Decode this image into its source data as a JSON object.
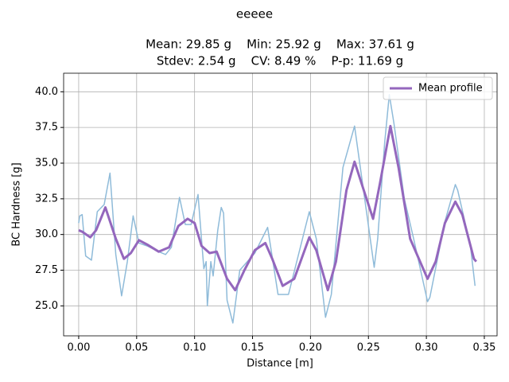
{
  "chart_data": {
    "type": "line",
    "title": "eeeee",
    "subtitle": [
      "Mean: 29.85 g    Min: 25.92 g    Max: 37.61 g",
      "Stdev: 2.54 g    CV: 8.49 %    P-p: 11.69 g"
    ],
    "x_label": "Distance [m]",
    "y_label": "BC Hardness [g]",
    "xlim": [
      -0.013,
      0.361
    ],
    "ylim": [
      22.9,
      41.3
    ],
    "xticks": [
      {
        "value": 0,
        "label": "0.00"
      },
      {
        "value": 0.05,
        "label": "0.05"
      },
      {
        "value": 0.1,
        "label": "0.10"
      },
      {
        "value": 0.15,
        "label": "0.15"
      },
      {
        "value": 0.2,
        "label": "0.20"
      },
      {
        "value": 0.25,
        "label": "0.25"
      },
      {
        "value": 0.3,
        "label": "0.30"
      },
      {
        "value": 0.35,
        "label": "0.35"
      }
    ],
    "yticks": [
      {
        "value": 25,
        "label": "25.0"
      },
      {
        "value": 27.5,
        "label": "27.5"
      },
      {
        "value": 30,
        "label": "30.0"
      },
      {
        "value": 32.5,
        "label": "32.5"
      },
      {
        "value": 35,
        "label": "35.0"
      },
      {
        "value": 37.5,
        "label": "37.5"
      },
      {
        "value": 40,
        "label": "40.0"
      }
    ],
    "grid": true,
    "legend": "upper right",
    "series": [
      {
        "color": "#8fbbd9",
        "x": [
          0.0,
          0.001,
          0.003,
          0.006,
          0.011,
          0.016,
          0.022,
          0.027,
          0.032,
          0.037,
          0.042,
          0.047,
          0.052,
          0.059,
          0.069,
          0.075,
          0.08,
          0.087,
          0.092,
          0.097,
          0.103,
          0.108,
          0.11,
          0.111,
          0.114,
          0.116,
          0.12,
          0.123,
          0.125,
          0.128,
          0.133,
          0.139,
          0.152,
          0.163,
          0.172,
          0.181,
          0.199,
          0.205,
          0.213,
          0.218,
          0.228,
          0.238,
          0.248,
          0.255,
          0.258,
          0.264,
          0.268,
          0.272,
          0.281,
          0.289,
          0.301,
          0.303,
          0.316,
          0.325,
          0.327,
          0.338,
          0.342
        ],
        "values": [
          30.8,
          31.3,
          31.4,
          28.5,
          28.2,
          31.6,
          32.1,
          34.3,
          28.6,
          25.7,
          28.1,
          31.3,
          29.4,
          29.2,
          28.8,
          28.6,
          29.1,
          32.6,
          30.7,
          30.7,
          32.8,
          27.6,
          28.1,
          25.0,
          28.1,
          27.1,
          30.3,
          31.9,
          31.5,
          25.4,
          23.8,
          27.5,
          28.7,
          30.5,
          25.8,
          25.8,
          31.6,
          29.7,
          24.2,
          25.8,
          34.7,
          37.6,
          31.8,
          27.7,
          29.7,
          36.4,
          39.8,
          37.8,
          32.5,
          29.7,
          25.3,
          25.6,
          30.9,
          33.5,
          33.1,
          29.2,
          26.4
        ]
      },
      {
        "name": "Mean profile",
        "color": "#9467bd",
        "x": [
          0.0,
          0.003,
          0.01,
          0.015,
          0.023,
          0.032,
          0.039,
          0.045,
          0.052,
          0.059,
          0.069,
          0.078,
          0.086,
          0.094,
          0.1,
          0.106,
          0.113,
          0.119,
          0.128,
          0.135,
          0.143,
          0.152,
          0.161,
          0.167,
          0.176,
          0.186,
          0.199,
          0.205,
          0.215,
          0.222,
          0.231,
          0.238,
          0.246,
          0.254,
          0.26,
          0.269,
          0.276,
          0.286,
          0.301,
          0.308,
          0.316,
          0.325,
          0.331,
          0.341,
          0.343
        ],
        "values": [
          30.3,
          30.2,
          29.8,
          30.3,
          31.9,
          29.7,
          28.3,
          28.7,
          29.6,
          29.3,
          28.8,
          29.1,
          30.6,
          31.1,
          30.8,
          29.2,
          28.7,
          28.8,
          26.9,
          26.1,
          27.5,
          28.9,
          29.4,
          28.3,
          26.4,
          26.9,
          29.8,
          28.9,
          26.1,
          28.1,
          33.1,
          35.1,
          33.1,
          31.1,
          33.6,
          37.6,
          34.7,
          29.7,
          26.9,
          28.1,
          30.8,
          32.3,
          31.4,
          28.3,
          28.1
        ]
      }
    ]
  }
}
